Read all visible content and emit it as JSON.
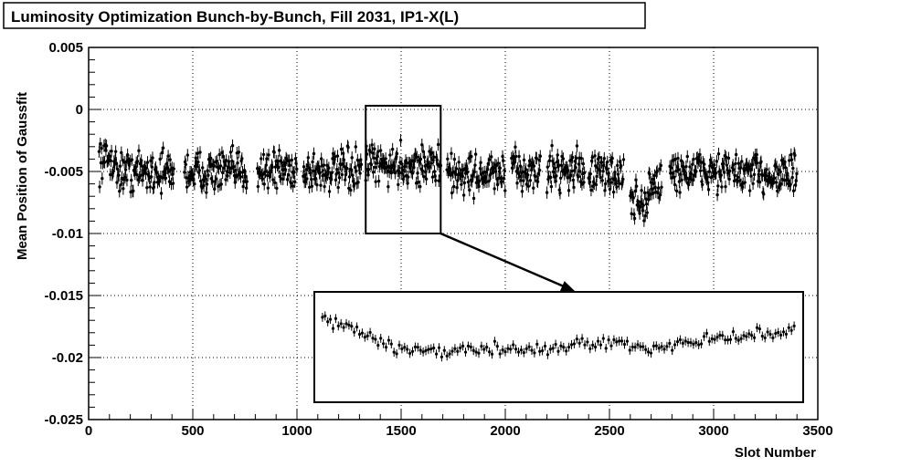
{
  "chart_data": {
    "type": "scatter",
    "title": "Luminosity Optimization Bunch-by-Bunch, Fill 2031, IP1-X(L)",
    "xlabel": "Slot Number",
    "ylabel": "Mean Position of Gaussfit",
    "xlim": [
      0,
      3500
    ],
    "ylim": [
      -0.025,
      0.005
    ],
    "x_ticks": [
      0,
      500,
      1000,
      1500,
      2000,
      2500,
      3000,
      3500
    ],
    "y_ticks": [
      -0.025,
      -0.02,
      -0.015,
      -0.01,
      -0.005,
      0,
      0.005
    ],
    "x_tick_labels": [
      "0",
      "500",
      "1000",
      "1500",
      "2000",
      "2500",
      "3000",
      "3500"
    ],
    "y_tick_labels": [
      "-0.025",
      "-0.02",
      "-0.015",
      "-0.01",
      "-0.005",
      "0",
      "0.005"
    ],
    "grid": true,
    "zoom_region": {
      "x": [
        1330,
        1690
      ],
      "y": [
        -0.01,
        0.0003
      ]
    },
    "bunch_trains": [
      {
        "start": 50,
        "end": 130,
        "mean": -0.004
      },
      {
        "start": 130,
        "end": 410,
        "mean": -0.005
      },
      {
        "start": 460,
        "end": 760,
        "mean": -0.005
      },
      {
        "start": 810,
        "end": 1000,
        "mean": -0.0048
      },
      {
        "start": 1030,
        "end": 1310,
        "mean": -0.005
      },
      {
        "start": 1330,
        "end": 1690,
        "mean": -0.0045
      },
      {
        "start": 1720,
        "end": 2000,
        "mean": -0.0052
      },
      {
        "start": 2030,
        "end": 2170,
        "mean": -0.005
      },
      {
        "start": 2200,
        "end": 2380,
        "mean": -0.0048
      },
      {
        "start": 2400,
        "end": 2570,
        "mean": -0.0052
      },
      {
        "start": 2600,
        "end": 2690,
        "mean": -0.0075
      },
      {
        "start": 2690,
        "end": 2750,
        "mean": -0.006
      },
      {
        "start": 2790,
        "end": 3080,
        "mean": -0.005
      },
      {
        "start": 3090,
        "end": 3400,
        "mean": -0.0052
      }
    ],
    "zoom_trend": [
      [
        1330,
        -0.0015
      ],
      [
        1350,
        -0.0025
      ],
      [
        1380,
        -0.0048
      ],
      [
        1420,
        -0.0055
      ],
      [
        1460,
        -0.0048
      ],
      [
        1490,
        -0.0052
      ],
      [
        1530,
        -0.0044
      ],
      [
        1570,
        -0.0048
      ],
      [
        1610,
        -0.0044
      ],
      [
        1650,
        -0.0036
      ],
      [
        1690,
        -0.003
      ]
    ]
  }
}
